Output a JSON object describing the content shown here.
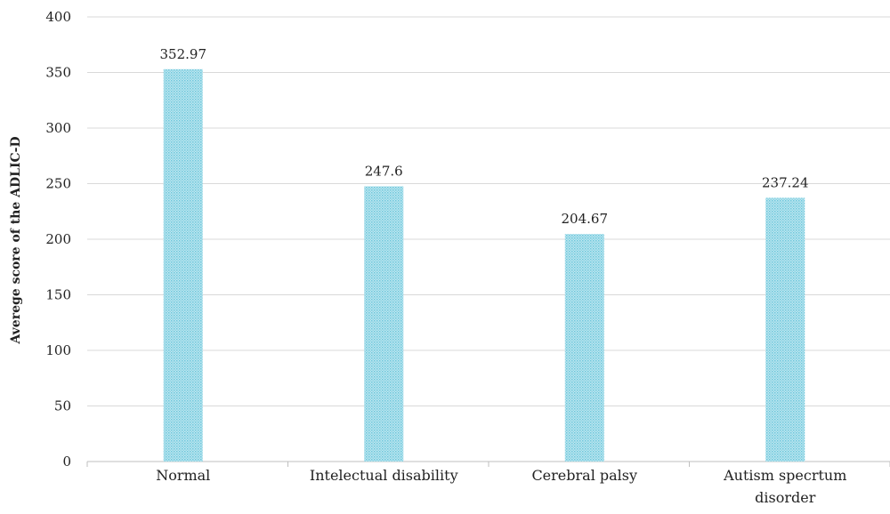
{
  "chart_data": {
    "type": "bar",
    "categories": [
      "Normal",
      "Intelectual disability",
      "Cerebral palsy",
      "Autism specrtum disorder"
    ],
    "values": [
      352.97,
      247.6,
      204.67,
      237.24
    ],
    "data_labels": [
      "352.97",
      "247.6",
      "204.67",
      "237.24"
    ],
    "title": "",
    "xlabel": "",
    "ylabel": "Averege score of the ADLIC-D",
    "ylim": [
      0,
      400
    ],
    "yticks": [
      0,
      50,
      100,
      150,
      200,
      250,
      300,
      350,
      400
    ],
    "grid": true,
    "legend": "none",
    "bar_color": "#8fd3e3",
    "bar_pattern": "dotted"
  }
}
